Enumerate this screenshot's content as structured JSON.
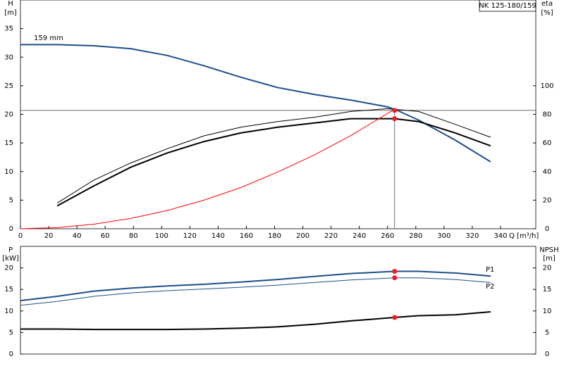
{
  "chart_data": [
    {
      "type": "line",
      "title": "NK 125-180/159",
      "ylabel": "H",
      "ylabel_unit": "[m]",
      "y2label": "eta",
      "y2label_unit": "[%]",
      "xlabel": "Q [m³/h]",
      "xlim": [
        0,
        365
      ],
      "xticks": [
        0,
        20,
        40,
        60,
        80,
        100,
        120,
        140,
        160,
        180,
        200,
        220,
        240,
        260,
        280,
        300,
        320,
        340
      ],
      "ylim": [
        0,
        40
      ],
      "yticks": [
        0,
        5,
        10,
        15,
        20,
        25,
        30,
        35
      ],
      "y2lim": [
        0,
        160
      ],
      "y2ticks": [
        0,
        20,
        40,
        60,
        80,
        100
      ],
      "series": [
        {
          "name": "159 mm",
          "color": "#1c4f8c",
          "style": "thick",
          "x": [
            0,
            26,
            52,
            78,
            104,
            130,
            156,
            182,
            208,
            234,
            260,
            266,
            282,
            308,
            333
          ],
          "values": [
            32.2,
            32.2,
            32.0,
            31.5,
            30.3,
            28.5,
            26.5,
            24.7,
            23.5,
            22.5,
            21.3,
            20.8,
            19.0,
            15.5,
            11.7
          ]
        },
        {
          "color": "#000000",
          "style": "thin",
          "axis": "y2",
          "x": [
            26,
            52,
            78,
            104,
            130,
            156,
            182,
            208,
            234,
            260,
            282,
            308,
            333
          ],
          "values": [
            18,
            34,
            46,
            56,
            65,
            71,
            75,
            78,
            82,
            84,
            82,
            73,
            64
          ]
        },
        {
          "color": "#000000",
          "style": "thick",
          "axis": "y2",
          "x": [
            26,
            52,
            78,
            104,
            130,
            156,
            182,
            208,
            234,
            265,
            282,
            308,
            333
          ],
          "values": [
            16,
            30,
            43,
            53,
            61,
            67,
            71,
            74,
            77,
            77,
            75,
            67,
            58
          ]
        },
        {
          "color": "#ff0000",
          "style": "thin",
          "x": [
            0,
            26,
            52,
            78,
            104,
            130,
            156,
            182,
            208,
            234,
            265
          ],
          "values": [
            0,
            0.2,
            0.8,
            1.8,
            3.2,
            5.0,
            7.2,
            9.9,
            12.9,
            16.3,
            20.9
          ]
        }
      ],
      "duty_point": {
        "x": 265,
        "y": 20.7,
        "y2": 77
      }
    },
    {
      "type": "line",
      "ylabel": "P",
      "ylabel_unit": "[kW]",
      "y2label": "NPSH",
      "y2label_unit": "[m]",
      "xlim": [
        0,
        365
      ],
      "ylim": [
        0,
        25
      ],
      "yticks": [
        0,
        5,
        10,
        15,
        20
      ],
      "y2lim": [
        0,
        25
      ],
      "y2ticks": [
        0,
        5,
        10,
        15,
        20
      ],
      "series": [
        {
          "name": "P1",
          "color": "#1c4f8c",
          "style": "thick",
          "x": [
            0,
            26,
            52,
            78,
            104,
            130,
            156,
            182,
            208,
            234,
            265,
            282,
            308,
            333
          ],
          "values": [
            12.4,
            13.4,
            14.6,
            15.3,
            15.8,
            16.2,
            16.7,
            17.3,
            18.0,
            18.7,
            19.2,
            19.2,
            18.8,
            18.1
          ]
        },
        {
          "name": "P2",
          "color": "#1c4f8c",
          "style": "thin",
          "x": [
            0,
            26,
            52,
            78,
            104,
            130,
            156,
            182,
            208,
            234,
            265,
            282,
            308,
            333
          ],
          "values": [
            11.3,
            12.2,
            13.4,
            14.2,
            14.7,
            15.1,
            15.5,
            16.0,
            16.6,
            17.2,
            17.7,
            17.7,
            17.3,
            16.6
          ]
        },
        {
          "color": "#000000",
          "style": "thick",
          "axis": "y2",
          "x": [
            0,
            26,
            52,
            78,
            104,
            130,
            156,
            182,
            208,
            234,
            265,
            282,
            308,
            333
          ],
          "values": [
            5.8,
            5.8,
            5.7,
            5.7,
            5.7,
            5.8,
            6.0,
            6.3,
            6.9,
            7.7,
            8.5,
            8.9,
            9.1,
            9.8
          ]
        }
      ],
      "duty_point": {
        "x": 265,
        "y": [
          19.2,
          17.7
        ],
        "y2": 8.5
      }
    }
  ]
}
